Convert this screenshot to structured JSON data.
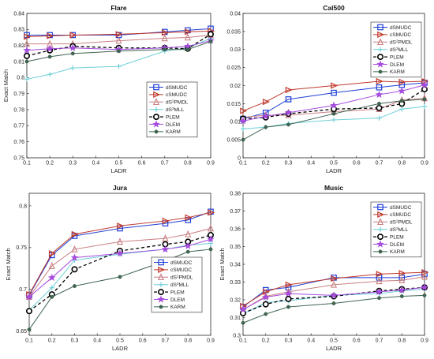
{
  "colors": {
    "dSMUDC": "#1f3fd6",
    "cSMUDC": "#c0392b",
    "dS2PMDL": "#c97f82",
    "dS2MLL": "#6fd0d8",
    "PLEM": "#000000",
    "DLEM": "#a64bde",
    "KARM": "#3f6450"
  },
  "chart_data": [
    {
      "type": "line",
      "title": "Flare",
      "xlabel": "LADR",
      "ylabel": "Exact Match",
      "x": [
        0.1,
        0.2,
        0.3,
        0.5,
        0.7,
        0.8,
        0.9
      ],
      "xticks": [
        "0.1",
        "0.2",
        "0.3",
        "0.4",
        "0.5",
        "0.6",
        "0.7",
        "0.8",
        "0.9"
      ],
      "xlim": [
        0.1,
        0.9
      ],
      "yticks": [
        "0.75",
        "0.76",
        "0.77",
        "0.78",
        "0.79",
        "0.8",
        "0.81",
        "0.82",
        "0.83",
        "0.84"
      ],
      "ylim": [
        0.75,
        0.84
      ],
      "legend": "right",
      "series": [
        {
          "name": "dSMUDC",
          "values": [
            0.8265,
            0.8265,
            0.8265,
            0.8265,
            0.8285,
            0.8295,
            0.8305
          ]
        },
        {
          "name": "cSMUDC",
          "values": [
            0.8255,
            0.826,
            0.8265,
            0.827,
            0.828,
            0.8285,
            0.829
          ]
        },
        {
          "name": "dS²PMDL",
          "values": [
            0.821,
            0.821,
            0.821,
            0.823,
            0.8245,
            0.825,
            0.8265
          ]
        },
        {
          "name": "dS²MLL",
          "values": [
            0.799,
            0.802,
            0.806,
            0.807,
            0.8165,
            0.8185,
            0.8245
          ]
        },
        {
          "name": "PLEM",
          "values": [
            0.8135,
            0.817,
            0.8195,
            0.8185,
            0.8185,
            0.818,
            0.827
          ]
        },
        {
          "name": "DLEM",
          "values": [
            0.817,
            0.818,
            0.8185,
            0.8175,
            0.8185,
            0.8195,
            0.823
          ]
        },
        {
          "name": "KARM",
          "values": [
            0.81,
            0.813,
            0.815,
            0.8165,
            0.8175,
            0.8175,
            0.8225
          ]
        }
      ]
    },
    {
      "type": "line",
      "title": "Cal500",
      "xlabel": "LADR",
      "ylabel": "",
      "x": [
        0.1,
        0.2,
        0.3,
        0.5,
        0.7,
        0.8,
        0.9
      ],
      "xticks": [
        "0.1",
        "0.2",
        "0.3",
        "0.4",
        "0.5",
        "0.6",
        "0.7",
        "0.8",
        "0.9"
      ],
      "xlim": [
        0.1,
        0.9
      ],
      "yticks": [
        "0",
        "0.005",
        "0.01",
        "0.015",
        "0.02",
        "0.025",
        "0.03",
        "0.035",
        "0.04"
      ],
      "ylim": [
        0,
        0.04
      ],
      "legend": "top-right",
      "series": [
        {
          "name": "dSMUDC",
          "values": [
            0.0108,
            0.0125,
            0.0162,
            0.018,
            0.0195,
            0.0202,
            0.0208
          ]
        },
        {
          "name": "cSMUDC",
          "values": [
            0.013,
            0.0155,
            0.0188,
            0.02,
            0.0212,
            0.021,
            0.0212
          ]
        },
        {
          "name": "dS²PMDL",
          "values": [
            0.0112,
            0.0118,
            0.0118,
            0.0128,
            0.0135,
            0.016,
            0.0165
          ]
        },
        {
          "name": "dS²MLL",
          "values": [
            0.008,
            0.0085,
            0.0095,
            0.0105,
            0.011,
            0.0135,
            0.0142
          ]
        },
        {
          "name": "PLEM",
          "values": [
            0.0108,
            0.0112,
            0.0122,
            0.0135,
            0.0138,
            0.015,
            0.019
          ]
        },
        {
          "name": "DLEM",
          "values": [
            0.0102,
            0.0115,
            0.0125,
            0.0145,
            0.0175,
            0.0185,
            0.0202
          ]
        },
        {
          "name": "KARM",
          "values": [
            0.005,
            0.0085,
            0.0092,
            0.0122,
            0.015,
            0.0158,
            0.0162
          ]
        }
      ]
    },
    {
      "type": "line",
      "title": "Jura",
      "xlabel": "LADR",
      "ylabel": "Exact Match",
      "x": [
        0.1,
        0.2,
        0.3,
        0.5,
        0.7,
        0.8,
        0.9
      ],
      "xticks": [
        "0.1",
        "0.2",
        "0.3",
        "0.4",
        "0.5",
        "0.6",
        "0.7",
        "0.8",
        "0.9"
      ],
      "xlim": [
        0.1,
        0.9
      ],
      "yticks": [
        "0.65",
        "0.7",
        "0.75",
        "0.8"
      ],
      "ylim": [
        0.645,
        0.815
      ],
      "legend": "bottom-right",
      "series": [
        {
          "name": "dSMUDC",
          "values": [
            0.693,
            0.741,
            0.764,
            0.773,
            0.779,
            0.783,
            0.793
          ]
        },
        {
          "name": "cSMUDC",
          "values": [
            0.694,
            0.743,
            0.766,
            0.776,
            0.782,
            0.786,
            0.792
          ]
        },
        {
          "name": "dS²PMDL",
          "values": [
            0.691,
            0.728,
            0.748,
            0.757,
            0.761,
            0.766,
            0.773
          ]
        },
        {
          "name": "dS²MLL",
          "values": [
            0.675,
            0.702,
            0.735,
            0.742,
            0.748,
            0.753,
            0.755
          ]
        },
        {
          "name": "PLEM",
          "values": [
            0.674,
            0.694,
            0.724,
            0.746,
            0.754,
            0.757,
            0.765
          ]
        },
        {
          "name": "DLEM",
          "values": [
            0.691,
            0.714,
            0.738,
            0.743,
            0.748,
            0.752,
            0.76
          ]
        },
        {
          "name": "KARM",
          "values": [
            0.652,
            0.691,
            0.704,
            0.715,
            0.734,
            0.745,
            0.748
          ]
        }
      ]
    },
    {
      "type": "line",
      "title": "Music",
      "xlabel": "LADR",
      "ylabel": "Exact Match",
      "x": [
        0.1,
        0.2,
        0.3,
        0.5,
        0.7,
        0.8,
        0.9
      ],
      "xticks": [
        "0.1",
        "0.2",
        "0.3",
        "0.4",
        "0.5",
        "0.6",
        "0.7",
        "0.8",
        "0.9"
      ],
      "xlim": [
        0.1,
        0.9
      ],
      "yticks": [
        "0.3",
        "0.31",
        "0.32",
        "0.33",
        "0.34",
        "0.35",
        "0.36",
        "0.37",
        "0.38"
      ],
      "ylim": [
        0.3,
        0.38
      ],
      "legend": "top-right",
      "series": [
        {
          "name": "dSMUDC",
          "values": [
            0.316,
            0.3255,
            0.327,
            0.3325,
            0.3325,
            0.3325,
            0.3345
          ]
        },
        {
          "name": "cSMUDC",
          "values": [
            0.3165,
            0.3245,
            0.3285,
            0.332,
            0.3345,
            0.335,
            0.3355
          ]
        },
        {
          "name": "dS²PMDL",
          "values": [
            0.3145,
            0.322,
            0.3245,
            0.3285,
            0.3305,
            0.331,
            0.333
          ]
        },
        {
          "name": "dS²MLL",
          "values": [
            0.312,
            0.3185,
            0.3195,
            0.3225,
            0.3235,
            0.325,
            0.326
          ]
        },
        {
          "name": "PLEM",
          "values": [
            0.3125,
            0.3175,
            0.3205,
            0.322,
            0.325,
            0.326,
            0.327
          ]
        },
        {
          "name": "DLEM",
          "values": [
            0.3145,
            0.3215,
            0.3235,
            0.3225,
            0.3245,
            0.3255,
            0.327
          ]
        },
        {
          "name": "KARM",
          "values": [
            0.307,
            0.312,
            0.316,
            0.318,
            0.321,
            0.322,
            0.3225
          ]
        }
      ]
    }
  ]
}
